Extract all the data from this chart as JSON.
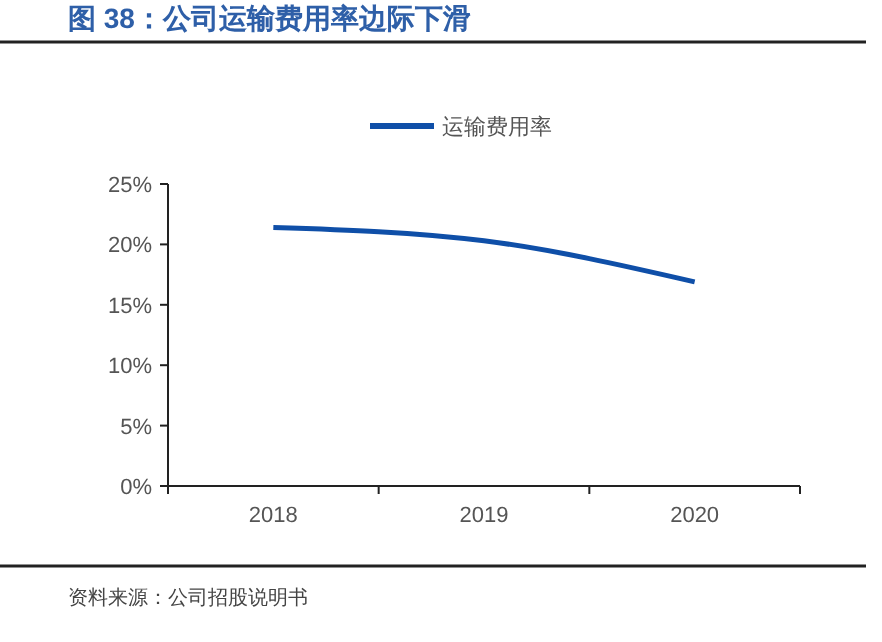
{
  "chart_data": {
    "type": "line",
    "title": "图 38：公司运输费用率边际下滑",
    "annotations": [
      "资料来源：公司招股说明书"
    ],
    "categories": [
      "2018",
      "2019",
      "2020"
    ],
    "series": [
      {
        "name": "运输费用率",
        "color": "#0f4fa8",
        "values": [
          21.4,
          20.3,
          16.9
        ]
      }
    ],
    "ylim": [
      0,
      25
    ],
    "yticks": [
      {
        "value": 0,
        "label": "0%"
      },
      {
        "value": 5,
        "label": "5%"
      },
      {
        "value": 10,
        "label": "10%"
      },
      {
        "value": 15,
        "label": "15%"
      },
      {
        "value": 20,
        "label": "20%"
      },
      {
        "value": 25,
        "label": "25%"
      }
    ],
    "grid": false,
    "legend": "top",
    "marker": "none",
    "line_style": "solid"
  }
}
